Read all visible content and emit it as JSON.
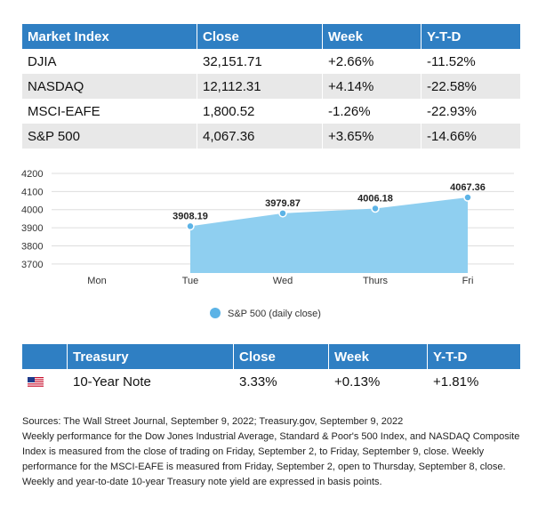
{
  "market": {
    "headers": [
      "Market Index",
      "Close",
      "Week",
      "Y-T-D"
    ],
    "rows": [
      [
        "DJIA",
        "32,151.71",
        "+2.66%",
        "-11.52%"
      ],
      [
        "NASDAQ",
        "12,112.31",
        "+4.14%",
        "-22.58%"
      ],
      [
        "MSCI-EAFE",
        "1,800.52",
        "-1.26%",
        "-22.93%"
      ],
      [
        "S&P 500",
        "4,067.36",
        "+3.65%",
        "-14.66%"
      ]
    ]
  },
  "chart_data": {
    "type": "area",
    "categories": [
      "Mon",
      "Tue",
      "Wed",
      "Thurs",
      "Fri"
    ],
    "series": [
      {
        "name": "S&P 500 (daily close)",
        "values": [
          null,
          3908.19,
          3979.87,
          4006.18,
          4067.36
        ],
        "labels": [
          "",
          "3908.19",
          "3979.87",
          "4006.18",
          "4067.36"
        ]
      }
    ],
    "yticks": [
      3700,
      3800,
      3900,
      4000,
      4100,
      4200
    ],
    "ylim": [
      3650,
      4200
    ],
    "grid": true,
    "legend_position": "bottom",
    "colors": {
      "fill": "#8fcff0",
      "point": "#5cb3e6",
      "grid": "#dddddd"
    }
  },
  "treasury": {
    "headers": [
      "",
      "Treasury",
      "Close",
      "Week",
      "Y-T-D"
    ],
    "row": {
      "flag_icon": "us-flag-icon",
      "name": "10-Year Note",
      "close": "3.33%",
      "week": "+0.13%",
      "ytd": "+1.81%"
    }
  },
  "notes": [
    "Sources: The Wall Street Journal, September 9, 2022; Treasury.gov, September 9, 2022",
    "Weekly performance for the Dow Jones Industrial Average, Standard & Poor's 500 Index, and NASDAQ Composite Index is measured from the close of trading on Friday, September 2, to Friday, September 9, close. Weekly performance for the MSCI-EAFE is measured from Friday, September 2, open to Thursday, September 8, close. Weekly and year-to-date 10-year Treasury note yield are expressed in basis points."
  ]
}
